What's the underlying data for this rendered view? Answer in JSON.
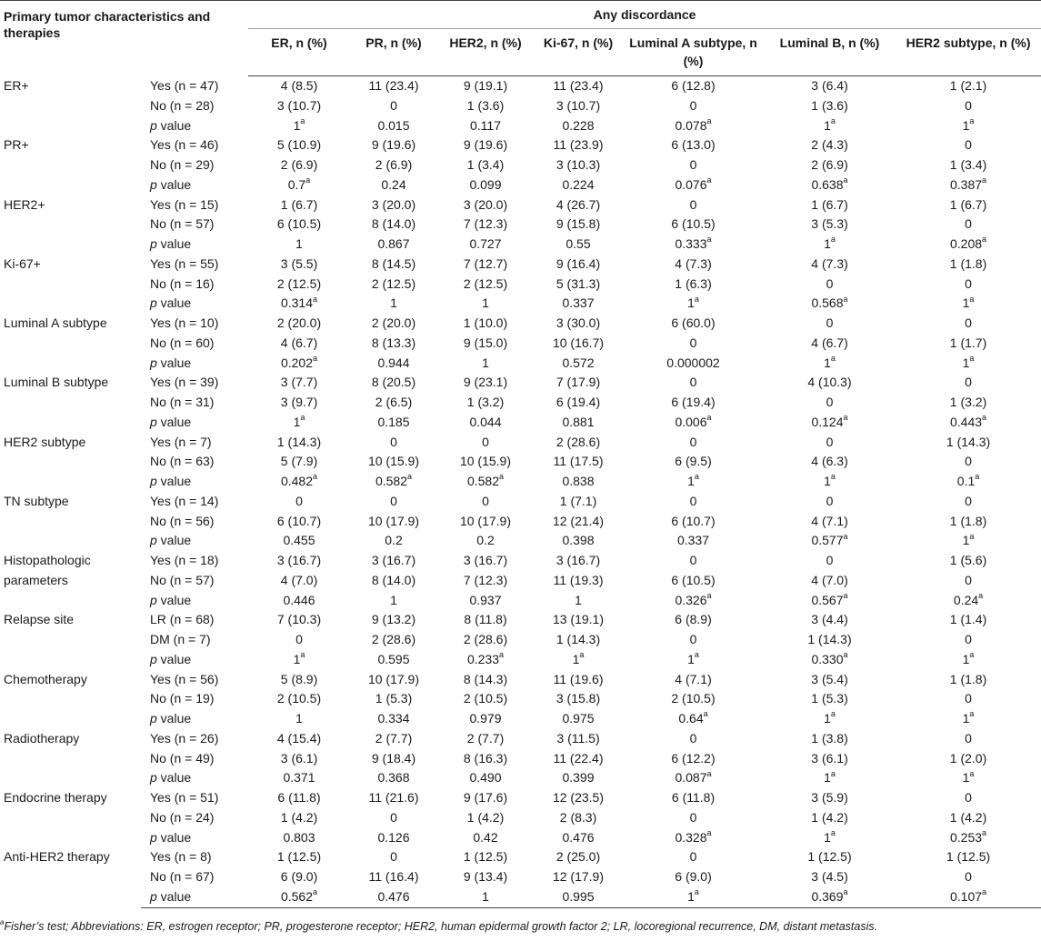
{
  "header": {
    "characteristics": "Primary tumor characteristics and therapies",
    "group": "Any discordance",
    "columns": [
      "ER, n (%)",
      "PR, n (%)",
      "HER2, n (%)",
      "Ki-67, n (%)",
      "Luminal A subtype, n (%)",
      "Luminal B, n (%)",
      "HER2 subtype, n (%)"
    ]
  },
  "groups": [
    {
      "name": "ER+",
      "rows": [
        {
          "label": "Yes (n = 47)",
          "values": [
            "4 (8.5)",
            "11 (23.4)",
            "9 (19.1)",
            "11 (23.4)",
            "6 (12.8)",
            "3 (6.4)",
            "1 (2.1)"
          ]
        },
        {
          "label": "No (n = 28)",
          "values": [
            "3 (10.7)",
            "0",
            "1 (3.6)",
            "3 (10.7)",
            "0",
            "1 (3.6)",
            "0"
          ]
        },
        {
          "label": "p value",
          "values": [
            "1",
            "0.015",
            "0.117",
            "0.228",
            "0.078",
            "1",
            "1"
          ],
          "sup": [
            "a",
            "",
            "",
            "",
            "a",
            "a",
            "a"
          ]
        }
      ]
    },
    {
      "name": "PR+",
      "rows": [
        {
          "label": "Yes (n = 46)",
          "values": [
            "5 (10.9)",
            "9 (19.6)",
            "9 (19.6)",
            "11 (23.9)",
            "6 (13.0)",
            "2 (4.3)",
            "0"
          ]
        },
        {
          "label": "No (n = 29)",
          "values": [
            "2 (6.9)",
            "2 (6.9)",
            "1 (3.4)",
            "3 (10.3)",
            "0",
            "2 (6.9)",
            "1 (3.4)"
          ]
        },
        {
          "label": "p value",
          "values": [
            "0.7",
            "0.24",
            "0.099",
            "0.224",
            "0.076",
            "0.638",
            "0.387"
          ],
          "sup": [
            "a",
            "",
            "",
            "",
            "a",
            "a",
            "a"
          ]
        }
      ]
    },
    {
      "name": "HER2+",
      "rows": [
        {
          "label": "Yes (n = 15)",
          "values": [
            "1 (6.7)",
            "3 (20.0)",
            "3 (20.0)",
            "4 (26.7)",
            "0",
            "1 (6.7)",
            "1 (6.7)"
          ]
        },
        {
          "label": "No (n = 57)",
          "values": [
            "6 (10.5)",
            "8 (14.0)",
            "7 (12.3)",
            "9 (15.8)",
            "6 (10.5)",
            "3 (5.3)",
            "0"
          ]
        },
        {
          "label": "p value",
          "values": [
            "1",
            "0.867",
            "0.727",
            "0.55",
            "0.333",
            "1",
            "0.208"
          ],
          "sup": [
            "",
            "",
            "",
            "",
            "a",
            "a",
            "a"
          ]
        }
      ]
    },
    {
      "name": "Ki-67+",
      "rows": [
        {
          "label": "Yes (n = 55)",
          "values": [
            "3 (5.5)",
            "8 (14.5)",
            "7 (12.7)",
            "9 (16.4)",
            "4 (7.3)",
            "4 (7.3)",
            "1 (1.8)"
          ]
        },
        {
          "label": "No (n = 16)",
          "values": [
            "2 (12.5)",
            "2 (12.5)",
            "2 (12.5)",
            "5 (31.3)",
            "1 (6.3)",
            "0",
            "0"
          ]
        },
        {
          "label": "p value",
          "values": [
            "0.314",
            "1",
            "1",
            "0.337",
            "1",
            "0.568",
            "1"
          ],
          "sup": [
            "a",
            "",
            "",
            "",
            "a",
            "a",
            "a"
          ]
        }
      ]
    },
    {
      "name": "Luminal A subtype",
      "rows": [
        {
          "label": "Yes (n = 10)",
          "values": [
            "2 (20.0)",
            "2 (20.0)",
            "1 (10.0)",
            "3 (30.0)",
            "6 (60.0)",
            "0",
            "0"
          ]
        },
        {
          "label": "No (n = 60)",
          "values": [
            "4 (6.7)",
            "8 (13.3)",
            "9 (15.0)",
            "10 (16.7)",
            "0",
            "4 (6.7)",
            "1 (1.7)"
          ]
        },
        {
          "label": "p value",
          "values": [
            "0.202",
            "0.944",
            "1",
            "0.572",
            "0.000002",
            "1",
            "1"
          ],
          "sup": [
            "a",
            "",
            "",
            "",
            "",
            "a",
            "a"
          ]
        }
      ]
    },
    {
      "name": "Luminal B subtype",
      "rows": [
        {
          "label": "Yes (n = 39)",
          "values": [
            "3 (7.7)",
            "8 (20.5)",
            "9 (23.1)",
            "7 (17.9)",
            "0",
            "4 (10.3)",
            "0"
          ]
        },
        {
          "label": "No (n = 31)",
          "values": [
            "3 (9.7)",
            "2 (6.5)",
            "1 (3.2)",
            "6 (19.4)",
            "6 (19.4)",
            "0",
            "1 (3.2)"
          ]
        },
        {
          "label": "p value",
          "values": [
            "1",
            "0.185",
            "0.044",
            "0.881",
            "0.006",
            "0.124",
            "0.443"
          ],
          "sup": [
            "a",
            "",
            "",
            "",
            "a",
            "a",
            "a"
          ]
        }
      ]
    },
    {
      "name": "HER2 subtype",
      "rows": [
        {
          "label": "Yes (n = 7)",
          "values": [
            "1 (14.3)",
            "0",
            "0",
            "2 (28.6)",
            "0",
            "0",
            "1 (14.3)"
          ]
        },
        {
          "label": "No (n = 63)",
          "values": [
            "5 (7.9)",
            "10 (15.9)",
            "10 (15.9)",
            "11 (17.5)",
            "6 (9.5)",
            "4 (6.3)",
            "0"
          ]
        },
        {
          "label": "p value",
          "values": [
            "0.482",
            "0.582",
            "0.582",
            "0.838",
            "1",
            "1",
            "0.1"
          ],
          "sup": [
            "a",
            "a",
            "a",
            "",
            "a",
            "a",
            "a"
          ]
        }
      ]
    },
    {
      "name": "TN subtype",
      "rows": [
        {
          "label": "Yes (n = 14)",
          "values": [
            "0",
            "0",
            "0",
            "1 (7.1)",
            "0",
            "0",
            "0"
          ]
        },
        {
          "label": "No (n = 56)",
          "values": [
            "6 (10.7)",
            "10 (17.9)",
            "10 (17.9)",
            "12 (21.4)",
            "6 (10.7)",
            "4 (7.1)",
            "1 (1.8)"
          ]
        },
        {
          "label": "p value",
          "values": [
            "0.455",
            "0.2",
            "0.2",
            "0.398",
            "0.337",
            "0.577",
            "1"
          ],
          "sup": [
            "",
            "",
            "",
            "",
            "",
            "a",
            "a"
          ]
        }
      ]
    },
    {
      "name": "Histopathologic parameters",
      "rows": [
        {
          "label": "Yes (n = 18)",
          "values": [
            "3 (16.7)",
            "3 (16.7)",
            "3 (16.7)",
            "3 (16.7)",
            "0",
            "0",
            "1 (5.6)"
          ]
        },
        {
          "label": "No (n = 57)",
          "values": [
            "4 (7.0)",
            "8 (14.0)",
            "7 (12.3)",
            "11 (19.3)",
            "6 (10.5)",
            "4 (7.0)",
            "0"
          ]
        },
        {
          "label": "p value",
          "values": [
            "0.446",
            "1",
            "0.937",
            "1",
            "0.326",
            "0.567",
            "0.24"
          ],
          "sup": [
            "",
            "",
            "",
            "",
            "a",
            "a",
            "a"
          ]
        }
      ]
    },
    {
      "name": "Relapse site",
      "rows": [
        {
          "label": "LR (n = 68)",
          "values": [
            "7 (10.3)",
            "9 (13.2)",
            "8 (11.8)",
            "13 (19.1)",
            "6 (8.9)",
            "3 (4.4)",
            "1 (1.4)"
          ]
        },
        {
          "label": "DM (n = 7)",
          "values": [
            "0",
            "2 (28.6)",
            "2 (28.6)",
            "1 (14.3)",
            "0",
            "1 (14.3)",
            "0"
          ]
        },
        {
          "label": "p value",
          "values": [
            "1",
            "0.595",
            "0.233",
            "1",
            "1",
            "0.330",
            "1"
          ],
          "sup": [
            "a",
            "",
            "a",
            "a",
            "a",
            "a",
            "a"
          ]
        }
      ]
    },
    {
      "name": "Chemotherapy",
      "rows": [
        {
          "label": "Yes (n = 56)",
          "values": [
            "5 (8.9)",
            "10 (17.9)",
            "8 (14.3)",
            "11 (19.6)",
            "4 (7.1)",
            "3 (5.4)",
            "1 (1.8)"
          ]
        },
        {
          "label": "No (n = 19)",
          "values": [
            "2 (10.5)",
            "1 (5.3)",
            "2 (10.5)",
            "3 (15.8)",
            "2 (10.5)",
            "1 (5.3)",
            "0"
          ]
        },
        {
          "label": "p value",
          "values": [
            "1",
            "0.334",
            "0.979",
            "0.975",
            "0.64",
            "1",
            "1"
          ],
          "sup": [
            "",
            "",
            "",
            "",
            "a",
            "a",
            "a"
          ]
        }
      ]
    },
    {
      "name": "Radiotherapy",
      "rows": [
        {
          "label": "Yes (n = 26)",
          "values": [
            "4 (15.4)",
            "2 (7.7)",
            "2 (7.7)",
            "3 (11.5)",
            "0",
            "1 (3.8)",
            "0"
          ]
        },
        {
          "label": "No (n = 49)",
          "values": [
            "3 (6.1)",
            "9 (18.4)",
            "8 (16.3)",
            "11 (22.4)",
            "6 (12.2)",
            "3 (6.1)",
            "1 (2.0)"
          ]
        },
        {
          "label": "p value",
          "values": [
            "0.371",
            "0.368",
            "0.490",
            "0.399",
            "0.087",
            "1",
            "1"
          ],
          "sup": [
            "",
            "",
            "",
            "",
            "a",
            "a",
            "a"
          ]
        }
      ]
    },
    {
      "name": "Endocrine therapy",
      "rows": [
        {
          "label": "Yes (n = 51)",
          "values": [
            "6 (11.8)",
            "11 (21.6)",
            "9 (17.6)",
            "12 (23.5)",
            "6 (11.8)",
            "3 (5.9)",
            "0"
          ]
        },
        {
          "label": "No (n = 24)",
          "values": [
            "1 (4.2)",
            "0",
            "1 (4.2)",
            "2 (8.3)",
            "0",
            "1 (4.2)",
            "1 (4.2)"
          ]
        },
        {
          "label": "p value",
          "values": [
            "0.803",
            "0.126",
            "0.42",
            "0.476",
            "0.328",
            "1",
            "0.253"
          ],
          "sup": [
            "",
            "",
            "",
            "",
            "a",
            "a",
            "a"
          ]
        }
      ]
    },
    {
      "name": "Anti-HER2 therapy",
      "rows": [
        {
          "label": "Yes (n = 8)",
          "values": [
            "1 (12.5)",
            "0",
            "1 (12.5)",
            "2 (25.0)",
            "0",
            "1 (12.5)",
            "1 (12.5)"
          ]
        },
        {
          "label": "No (n = 67)",
          "values": [
            "6 (9.0)",
            "11 (16.4)",
            "9 (13.4)",
            "12 (17.9)",
            "6 (9.0)",
            "3 (4.5)",
            "0"
          ]
        },
        {
          "label": "p value",
          "values": [
            "0.562",
            "0.476",
            "1",
            "0.995",
            "1",
            "0.369",
            "0.107"
          ],
          "sup": [
            "a",
            "",
            "",
            "",
            "a",
            "a",
            "a"
          ]
        }
      ]
    }
  ],
  "footnote": {
    "marker": "a",
    "text": "Fisher’s test; Abbreviations: ER, estrogen receptor; PR, progesterone receptor; HER2, human epidermal growth factor 2; LR, locoregional recurrence, DM, distant metastasis."
  }
}
